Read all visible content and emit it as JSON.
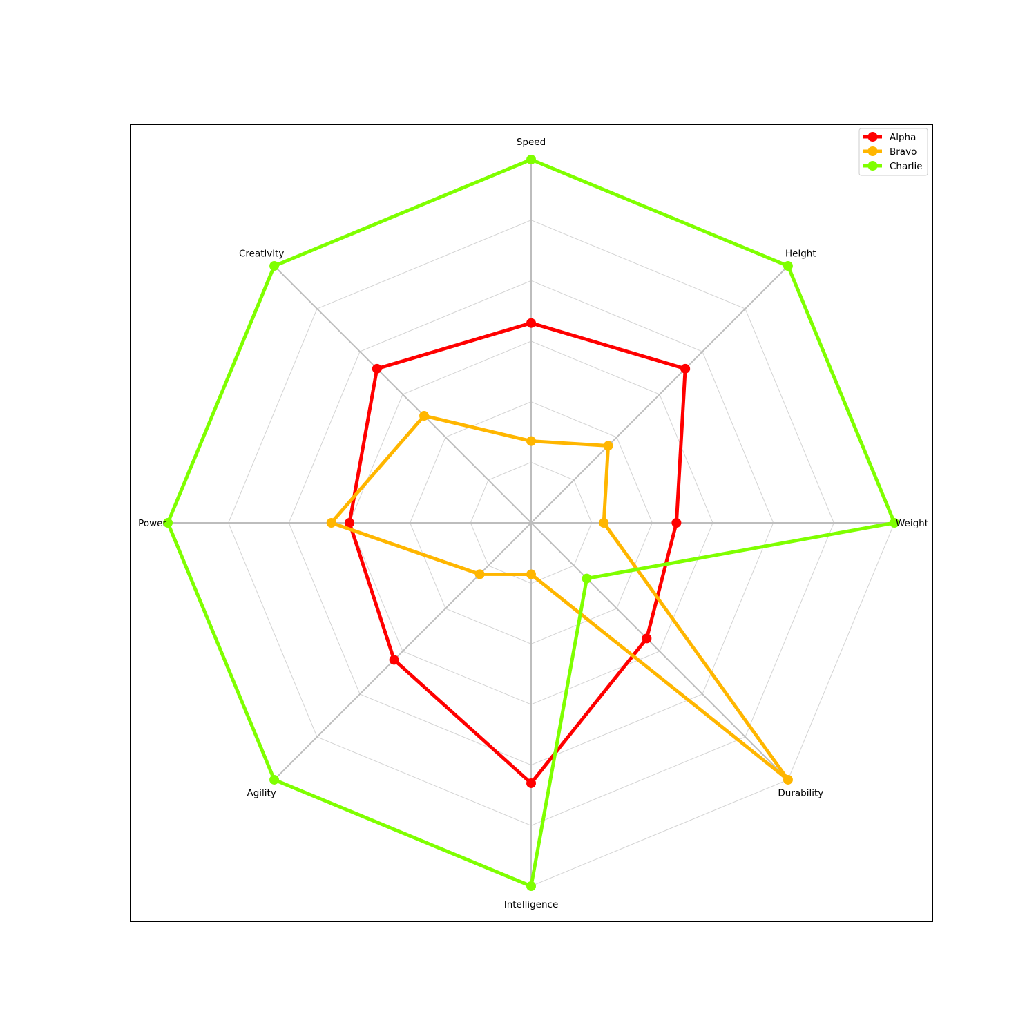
{
  "chart_data": {
    "type": "radar",
    "title": "",
    "axes": [
      "Speed",
      "Height",
      "Weight",
      "Durability",
      "Intelligence",
      "Agility",
      "Power",
      "Creativity"
    ],
    "range": [
      0,
      6
    ],
    "grid": true,
    "grid_levels": [
      1,
      2,
      3,
      4,
      5,
      6
    ],
    "legend_placement": "top-right",
    "series": [
      {
        "name": "Alpha",
        "color": "#ff0000",
        "values": [
          3.3,
          3.6,
          2.4,
          2.7,
          4.3,
          3.2,
          3.0,
          3.6
        ]
      },
      {
        "name": "Bravo",
        "color": "#ffb600",
        "values": [
          1.35,
          1.8,
          1.2,
          6.0,
          0.85,
          1.2,
          3.3,
          2.5
        ]
      },
      {
        "name": "Charlie",
        "color": "#7fff00",
        "values": [
          6.0,
          6.0,
          6.0,
          1.3,
          6.0,
          6.0,
          6.0,
          6.0
        ]
      }
    ]
  }
}
